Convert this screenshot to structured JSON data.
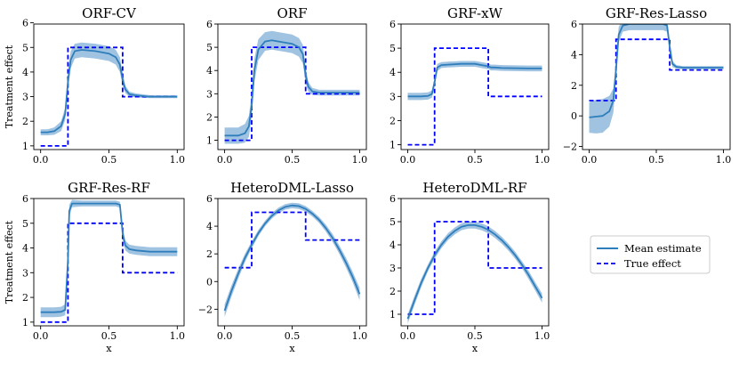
{
  "legend": {
    "mean_label": "Mean estimate",
    "true_label": "True effect"
  },
  "colors": {
    "mean": "#2f7ebc",
    "band": "#8fb9dc",
    "true": "#0000ff"
  },
  "chart_data": [
    {
      "type": "line",
      "title": "ORF-CV",
      "xlabel": "",
      "ylabel": "Treatment effect",
      "xlim": [
        -0.05,
        1.05
      ],
      "ylim": [
        0.85,
        5.95
      ],
      "xticks": [
        0.0,
        0.5,
        1.0
      ],
      "xtick_labels": [
        "0.0",
        "0.5",
        "1.0"
      ],
      "yticks": [
        1,
        2,
        3,
        4,
        5,
        6
      ],
      "ytick_labels": [
        "1",
        "2",
        "3",
        "4",
        "5",
        "6"
      ],
      "true_effect": {
        "x": [
          0,
          0.2,
          0.2,
          0.6,
          0.6,
          1.0
        ],
        "y": [
          1,
          1,
          5,
          5,
          3,
          3
        ]
      },
      "mean_estimate": {
        "x": [
          0,
          0.05,
          0.1,
          0.15,
          0.18,
          0.2,
          0.22,
          0.25,
          0.3,
          0.4,
          0.5,
          0.55,
          0.58,
          0.6,
          0.62,
          0.65,
          0.7,
          0.8,
          0.9,
          1.0
        ],
        "y": [
          1.55,
          1.55,
          1.6,
          1.8,
          2.3,
          3.6,
          4.5,
          4.85,
          4.9,
          4.85,
          4.75,
          4.6,
          4.3,
          3.7,
          3.3,
          3.1,
          3.05,
          3.0,
          3.0,
          3.0
        ]
      },
      "band_halfwidth": [
        0.12,
        0.12,
        0.15,
        0.2,
        0.25,
        0.35,
        0.35,
        0.3,
        0.3,
        0.3,
        0.3,
        0.3,
        0.3,
        0.25,
        0.15,
        0.1,
        0.08,
        0.06,
        0.06,
        0.06
      ]
    },
    {
      "type": "line",
      "title": "ORF",
      "xlabel": "",
      "ylabel": "",
      "xlim": [
        -0.05,
        1.05
      ],
      "ylim": [
        0.6,
        6.0
      ],
      "xticks": [
        0.0,
        0.5,
        1.0
      ],
      "xtick_labels": [
        "0.0",
        "0.5",
        "1.0"
      ],
      "yticks": [
        1,
        2,
        3,
        4,
        5,
        6
      ],
      "ytick_labels": [
        "1",
        "2",
        "3",
        "4",
        "5",
        "6"
      ],
      "true_effect": {
        "x": [
          0,
          0.2,
          0.2,
          0.6,
          0.6,
          1.0
        ],
        "y": [
          1,
          1,
          5,
          5,
          3,
          3
        ]
      },
      "mean_estimate": {
        "x": [
          0,
          0.1,
          0.15,
          0.18,
          0.2,
          0.22,
          0.25,
          0.3,
          0.35,
          0.4,
          0.5,
          0.55,
          0.58,
          0.6,
          0.62,
          0.65,
          0.7,
          0.8,
          0.9,
          1.0
        ],
        "y": [
          1.2,
          1.2,
          1.3,
          1.6,
          2.5,
          4.0,
          4.9,
          5.25,
          5.3,
          5.25,
          5.15,
          5.0,
          4.7,
          3.8,
          3.3,
          3.1,
          3.05,
          3.05,
          3.05,
          3.05
        ]
      },
      "band_halfwidth": [
        0.35,
        0.35,
        0.4,
        0.45,
        0.5,
        0.5,
        0.45,
        0.4,
        0.4,
        0.4,
        0.4,
        0.4,
        0.4,
        0.35,
        0.2,
        0.15,
        0.12,
        0.12,
        0.12,
        0.12
      ]
    },
    {
      "type": "line",
      "title": "GRF-xW",
      "xlabel": "",
      "ylabel": "",
      "xlim": [
        -0.05,
        1.05
      ],
      "ylim": [
        0.8,
        6.0
      ],
      "xticks": [
        0.0,
        0.5,
        1.0
      ],
      "xtick_labels": [
        "0.0",
        "0.5",
        "1.0"
      ],
      "yticks": [
        1,
        2,
        3,
        4,
        5,
        6
      ],
      "ytick_labels": [
        "1",
        "2",
        "3",
        "4",
        "5",
        "6"
      ],
      "true_effect": {
        "x": [
          0,
          0.2,
          0.2,
          0.6,
          0.6,
          1.0
        ],
        "y": [
          1,
          1,
          5,
          5,
          3,
          3
        ]
      },
      "mean_estimate": {
        "x": [
          0,
          0.1,
          0.15,
          0.18,
          0.2,
          0.22,
          0.25,
          0.3,
          0.4,
          0.5,
          0.55,
          0.6,
          0.62,
          0.65,
          0.7,
          0.8,
          0.9,
          1.0
        ],
        "y": [
          3.0,
          3.0,
          3.02,
          3.1,
          3.6,
          4.2,
          4.3,
          4.32,
          4.35,
          4.35,
          4.3,
          4.25,
          4.2,
          4.2,
          4.18,
          4.17,
          4.16,
          4.16
        ]
      },
      "band_halfwidth": [
        0.15,
        0.15,
        0.15,
        0.15,
        0.18,
        0.15,
        0.12,
        0.12,
        0.12,
        0.12,
        0.12,
        0.12,
        0.12,
        0.12,
        0.12,
        0.12,
        0.12,
        0.12
      ]
    },
    {
      "type": "line",
      "title": "GRF-Res-Lasso",
      "xlabel": "",
      "ylabel": "",
      "xlim": [
        -0.05,
        1.05
      ],
      "ylim": [
        -2.2,
        6.0
      ],
      "xticks": [
        0.0,
        0.5,
        1.0
      ],
      "xtick_labels": [
        "0.0",
        "0.5",
        "1.0"
      ],
      "yticks": [
        -2,
        0,
        2,
        4,
        6
      ],
      "ytick_labels": [
        "−2",
        "0",
        "2",
        "4",
        "6"
      ],
      "true_effect": {
        "x": [
          0,
          0.2,
          0.2,
          0.6,
          0.6,
          1.0
        ],
        "y": [
          1,
          1,
          5,
          5,
          3,
          3
        ]
      },
      "mean_estimate": {
        "x": [
          0,
          0.05,
          0.1,
          0.15,
          0.18,
          0.2,
          0.22,
          0.25,
          0.3,
          0.4,
          0.5,
          0.55,
          0.58,
          0.6,
          0.62,
          0.65,
          0.7,
          0.8,
          0.9,
          1.0
        ],
        "y": [
          -0.1,
          -0.05,
          0.0,
          0.3,
          1.0,
          3.0,
          5.3,
          5.9,
          6.0,
          6.0,
          6.0,
          6.0,
          5.9,
          4.5,
          3.4,
          3.2,
          3.15,
          3.15,
          3.15,
          3.15
        ]
      },
      "band_halfwidth": [
        1.0,
        1.1,
        1.1,
        1.0,
        0.8,
        0.6,
        0.5,
        0.4,
        0.4,
        0.4,
        0.4,
        0.4,
        0.4,
        0.4,
        0.2,
        0.12,
        0.1,
        0.1,
        0.1,
        0.1
      ]
    },
    {
      "type": "line",
      "title": "GRF-Res-RF",
      "xlabel": "x",
      "ylabel": "Treatment effect",
      "xlim": [
        -0.05,
        1.05
      ],
      "ylim": [
        0.85,
        6.0
      ],
      "xticks": [
        0.0,
        0.5,
        1.0
      ],
      "xtick_labels": [
        "0.0",
        "0.5",
        "1.0"
      ],
      "yticks": [
        1,
        2,
        3,
        4,
        5,
        6
      ],
      "ytick_labels": [
        "1",
        "2",
        "3",
        "4",
        "5",
        "6"
      ],
      "true_effect": {
        "x": [
          0,
          0.2,
          0.2,
          0.6,
          0.6,
          1.0
        ],
        "y": [
          1,
          1,
          5,
          5,
          3,
          3
        ]
      },
      "mean_estimate": {
        "x": [
          0,
          0.1,
          0.15,
          0.18,
          0.2,
          0.21,
          0.23,
          0.3,
          0.4,
          0.5,
          0.55,
          0.58,
          0.6,
          0.62,
          0.65,
          0.7,
          0.8,
          0.9,
          1.0
        ],
        "y": [
          1.4,
          1.4,
          1.42,
          1.5,
          3.5,
          5.5,
          5.8,
          5.8,
          5.8,
          5.8,
          5.8,
          5.75,
          4.6,
          4.1,
          3.95,
          3.9,
          3.85,
          3.85,
          3.85
        ]
      },
      "band_halfwidth": [
        0.2,
        0.2,
        0.2,
        0.22,
        0.3,
        0.25,
        0.15,
        0.12,
        0.12,
        0.12,
        0.12,
        0.12,
        0.25,
        0.2,
        0.18,
        0.18,
        0.18,
        0.18,
        0.18
      ]
    },
    {
      "type": "line",
      "title": "HeteroDML-Lasso",
      "xlabel": "x",
      "ylabel": "",
      "xlim": [
        -0.05,
        1.05
      ],
      "ylim": [
        -3.2,
        6.0
      ],
      "xticks": [
        0.0,
        0.5,
        1.0
      ],
      "xtick_labels": [
        "0.0",
        "0.5",
        "1.0"
      ],
      "yticks": [
        -2,
        0,
        2,
        4,
        6
      ],
      "ytick_labels": [
        "−2",
        "0",
        "2",
        "4",
        "6"
      ],
      "true_effect": {
        "x": [
          0,
          0.2,
          0.2,
          0.6,
          0.6,
          1.0
        ],
        "y": [
          1,
          1,
          5,
          5,
          3,
          3
        ]
      },
      "mean_estimate": {
        "x": [
          0,
          0.05,
          0.1,
          0.15,
          0.2,
          0.25,
          0.3,
          0.35,
          0.4,
          0.45,
          0.5,
          0.55,
          0.6,
          0.65,
          0.7,
          0.75,
          0.8,
          0.85,
          0.9,
          0.95,
          1.0
        ],
        "y": [
          -2.1,
          -0.7,
          0.55,
          1.7,
          2.65,
          3.5,
          4.2,
          4.75,
          5.15,
          5.4,
          5.5,
          5.45,
          5.25,
          4.9,
          4.45,
          3.85,
          3.15,
          2.3,
          1.35,
          0.3,
          -0.9
        ]
      },
      "band_halfwidth": [
        0.45,
        0.4,
        0.35,
        0.3,
        0.25,
        0.22,
        0.2,
        0.2,
        0.2,
        0.2,
        0.2,
        0.2,
        0.2,
        0.2,
        0.22,
        0.25,
        0.28,
        0.3,
        0.35,
        0.38,
        0.45
      ]
    },
    {
      "type": "line",
      "title": "HeteroDML-RF",
      "xlabel": "x",
      "ylabel": "",
      "xlim": [
        -0.05,
        1.05
      ],
      "ylim": [
        0.5,
        6.0
      ],
      "xticks": [
        0.0,
        0.5,
        1.0
      ],
      "xtick_labels": [
        "0.0",
        "0.5",
        "1.0"
      ],
      "yticks": [
        1,
        2,
        3,
        4,
        5,
        6
      ],
      "ytick_labels": [
        "1",
        "2",
        "3",
        "4",
        "5",
        "6"
      ],
      "true_effect": {
        "x": [
          0,
          0.2,
          0.2,
          0.6,
          0.6,
          1.0
        ],
        "y": [
          1,
          1,
          5,
          5,
          3,
          3
        ]
      },
      "mean_estimate": {
        "x": [
          0,
          0.05,
          0.1,
          0.15,
          0.2,
          0.25,
          0.3,
          0.35,
          0.4,
          0.45,
          0.5,
          0.55,
          0.6,
          0.65,
          0.7,
          0.75,
          0.8,
          0.85,
          0.9,
          0.95,
          1.0
        ],
        "y": [
          0.8,
          1.6,
          2.35,
          3.0,
          3.55,
          4.0,
          4.35,
          4.6,
          4.78,
          4.85,
          4.85,
          4.78,
          4.65,
          4.45,
          4.2,
          3.9,
          3.55,
          3.15,
          2.7,
          2.2,
          1.7
        ]
      },
      "band_halfwidth": [
        0.2,
        0.2,
        0.18,
        0.15,
        0.15,
        0.15,
        0.15,
        0.15,
        0.15,
        0.15,
        0.15,
        0.15,
        0.15,
        0.15,
        0.15,
        0.15,
        0.15,
        0.15,
        0.18,
        0.18,
        0.2
      ]
    }
  ]
}
